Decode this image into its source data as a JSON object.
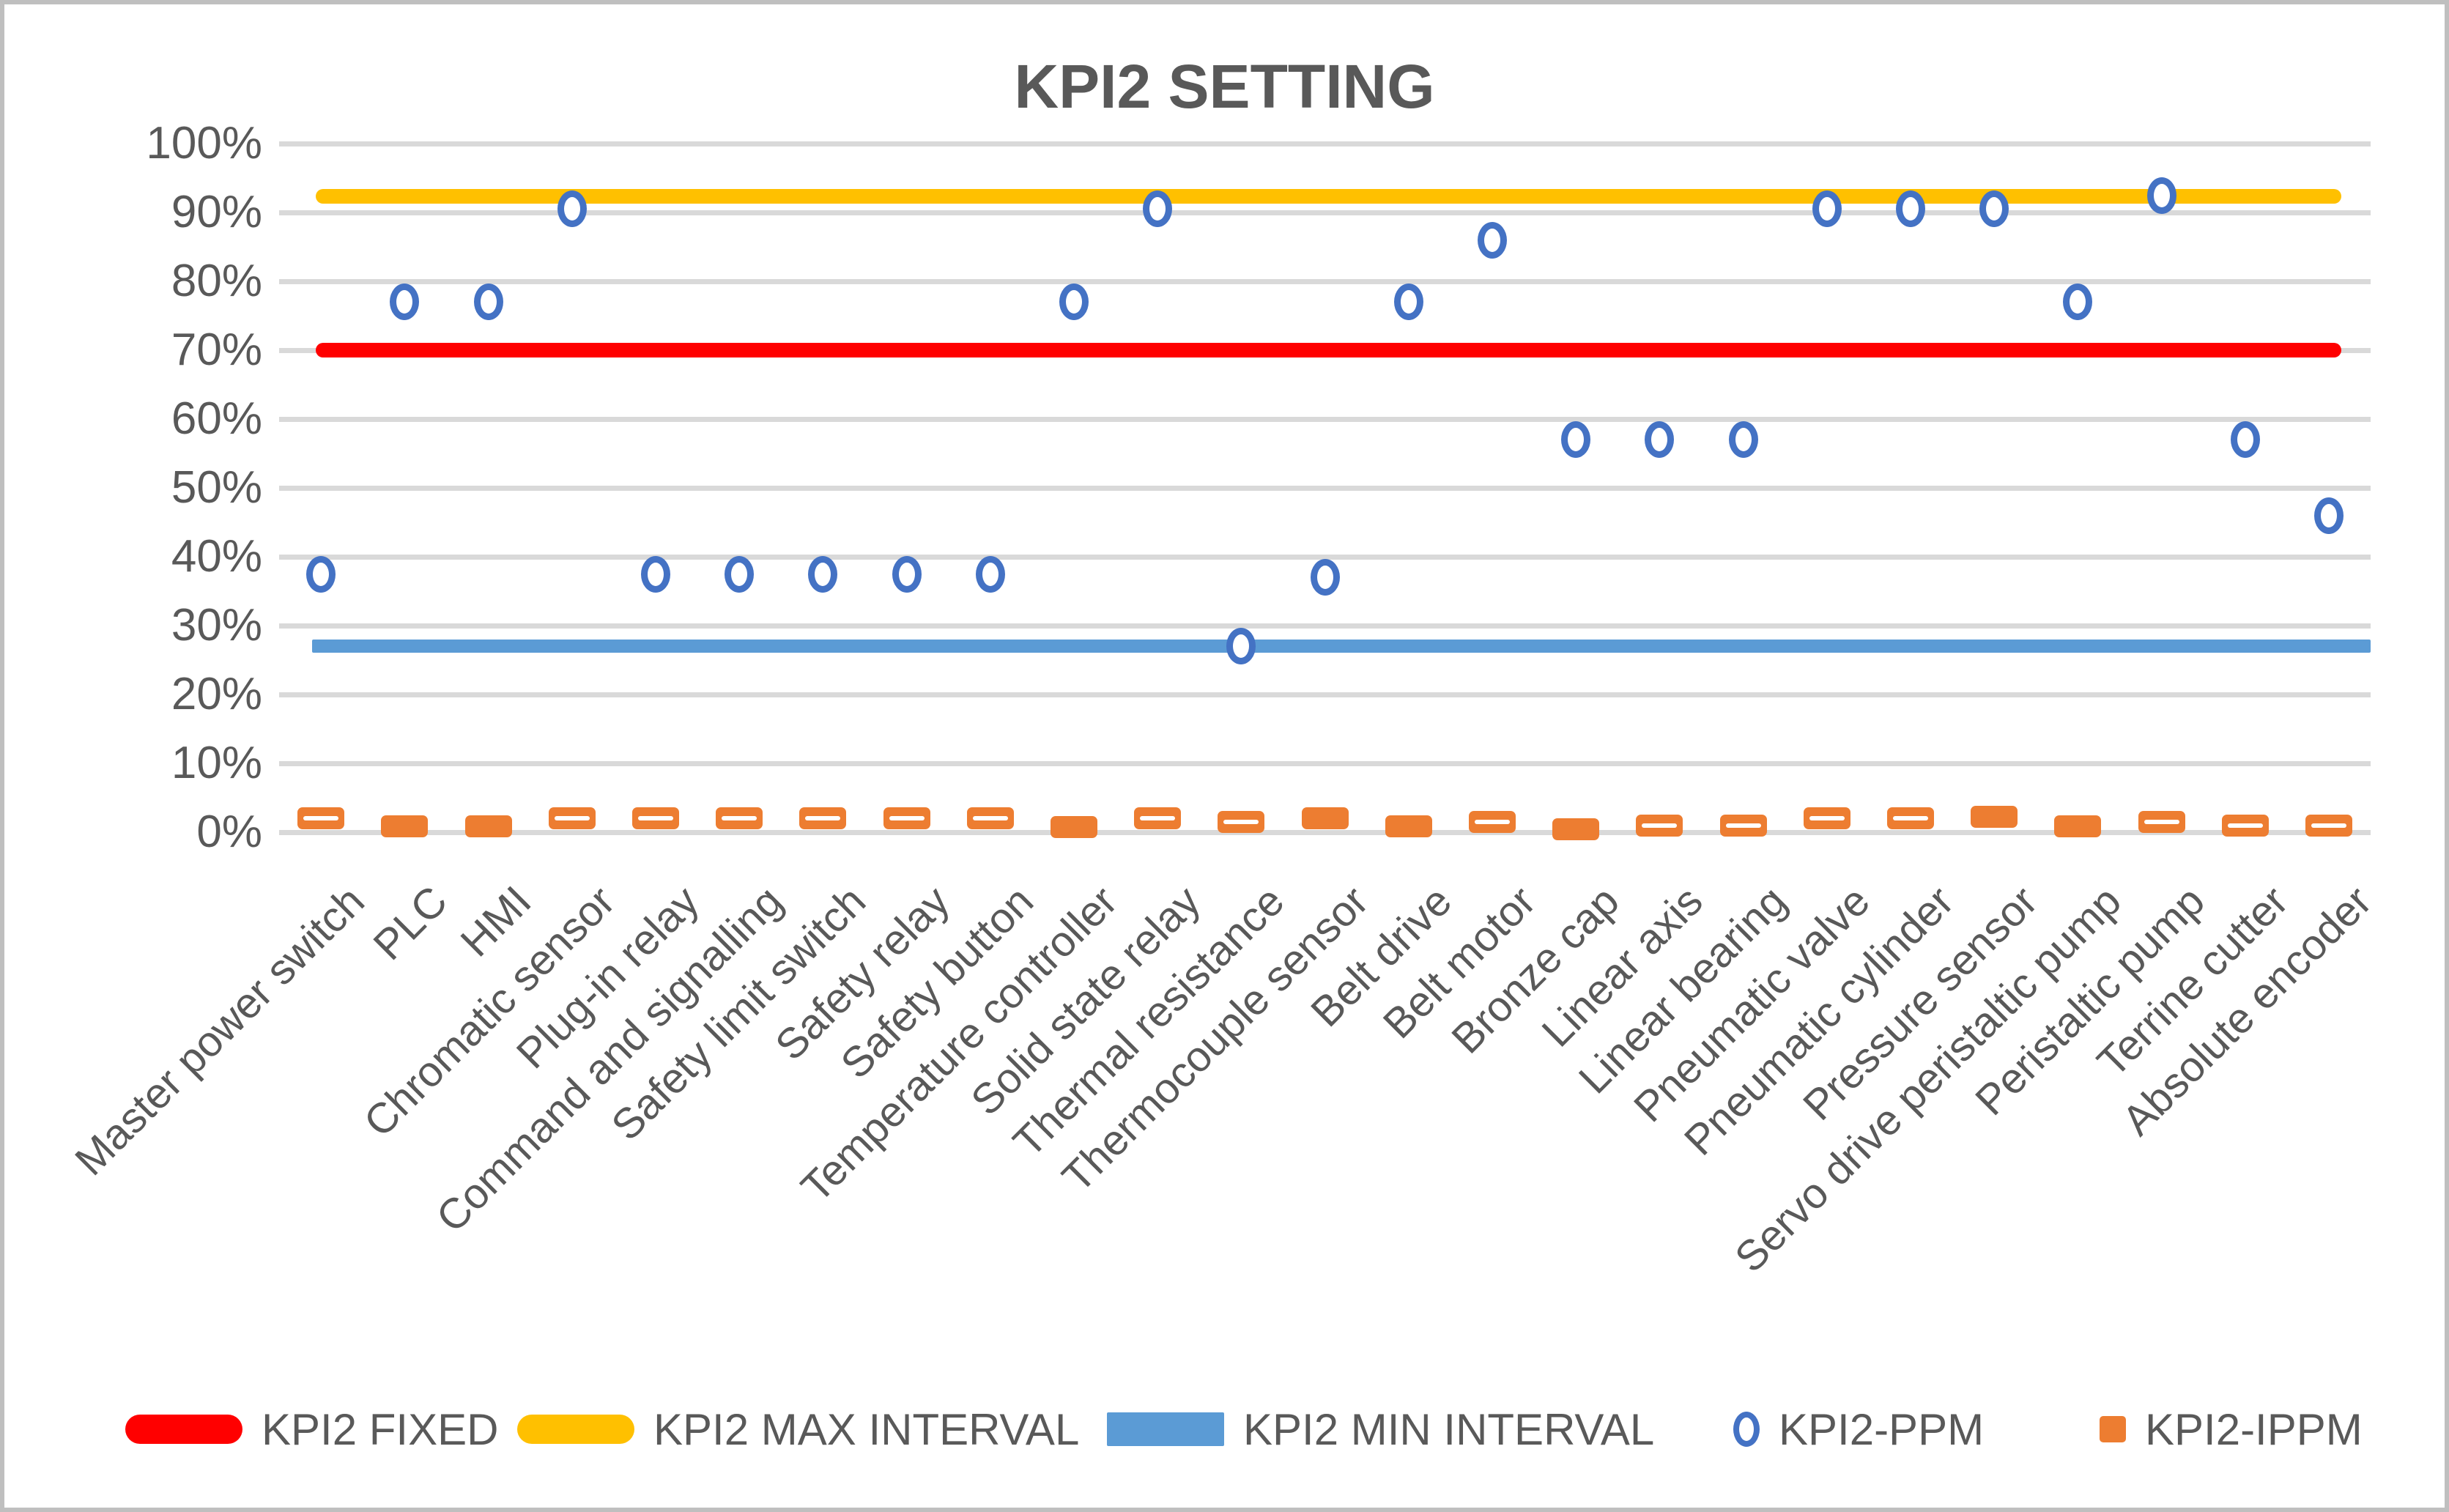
{
  "chart_data": {
    "type": "scatter",
    "title": "KPI2 SETTING",
    "categories": [
      "Master power switch",
      "PLC",
      "HMI",
      "Chromatic sensor",
      "Plug-in relay",
      "Command and signalling",
      "Safety limit switch",
      "Safety relay",
      "Safety button",
      "Temperature controller",
      "Solid state relay",
      "Thermal resistance",
      "Thermocouple sensor",
      "Belt drive",
      "Belt motor",
      "Bronze cap",
      "Linear axis",
      "Linear bearing",
      "Pneumatic valve",
      "Pneumatic cylinder",
      "Pressure sensor",
      "Servo drive peristaltic pump",
      "Peristaltic pump",
      "Terrine cutter",
      "Absolute encoder"
    ],
    "ylim": [
      0,
      100
    ],
    "grid": true,
    "legend_position": "bottom",
    "y_ticks": [
      {
        "value": 0,
        "label": "0%"
      },
      {
        "value": 10,
        "label": "10%"
      },
      {
        "value": 20,
        "label": "20%"
      },
      {
        "value": 30,
        "label": "30%"
      },
      {
        "value": 40,
        "label": "40%"
      },
      {
        "value": 50,
        "label": "50%"
      },
      {
        "value": 60,
        "label": "60%"
      },
      {
        "value": 70,
        "label": "70%"
      },
      {
        "value": 80,
        "label": "80%"
      },
      {
        "value": 90,
        "label": "90%"
      },
      {
        "value": 100,
        "label": "100%"
      }
    ],
    "series": [
      {
        "name": "KPI2 FIXED",
        "kind": "hline",
        "color": "#FF0000",
        "value": 70
      },
      {
        "name": "KPI2 MAX INTERVAL",
        "kind": "hline",
        "color": "#FFC000",
        "value": 92.3
      },
      {
        "name": "KPI2 MIN INTERVAL",
        "kind": "hline",
        "color": "#5B9BD5",
        "value": 27
      },
      {
        "name": "KPI2-PPM",
        "kind": "scatter",
        "marker": "circle",
        "color": "#4472C4",
        "values": [
          37.5,
          77,
          77,
          90.5,
          37.5,
          37.5,
          37.5,
          37.5,
          37.5,
          77,
          90.5,
          27,
          37,
          77,
          86,
          57,
          57,
          57,
          90.5,
          90.5,
          90.5,
          77,
          92.5,
          57,
          46
        ]
      },
      {
        "name": "KPI2-IPPM",
        "kind": "scatter",
        "marker": "dash",
        "color": "#ED7D31",
        "values": [
          2,
          0.8,
          0.8,
          2,
          2,
          2,
          2,
          2,
          2,
          0.7,
          2,
          1.5,
          2,
          0.8,
          1.5,
          0.4,
          1,
          1,
          2,
          2,
          2.2,
          0.9,
          1.5,
          1,
          1
        ],
        "marker_styles": [
          "striped",
          "solid",
          "solid",
          "striped",
          "striped",
          "striped",
          "striped",
          "striped",
          "striped",
          "solid",
          "striped",
          "striped",
          "solid",
          "solid",
          "striped",
          "solid",
          "striped",
          "striped",
          "striped",
          "striped",
          "solid",
          "solid",
          "striped",
          "striped",
          "striped"
        ]
      }
    ]
  }
}
